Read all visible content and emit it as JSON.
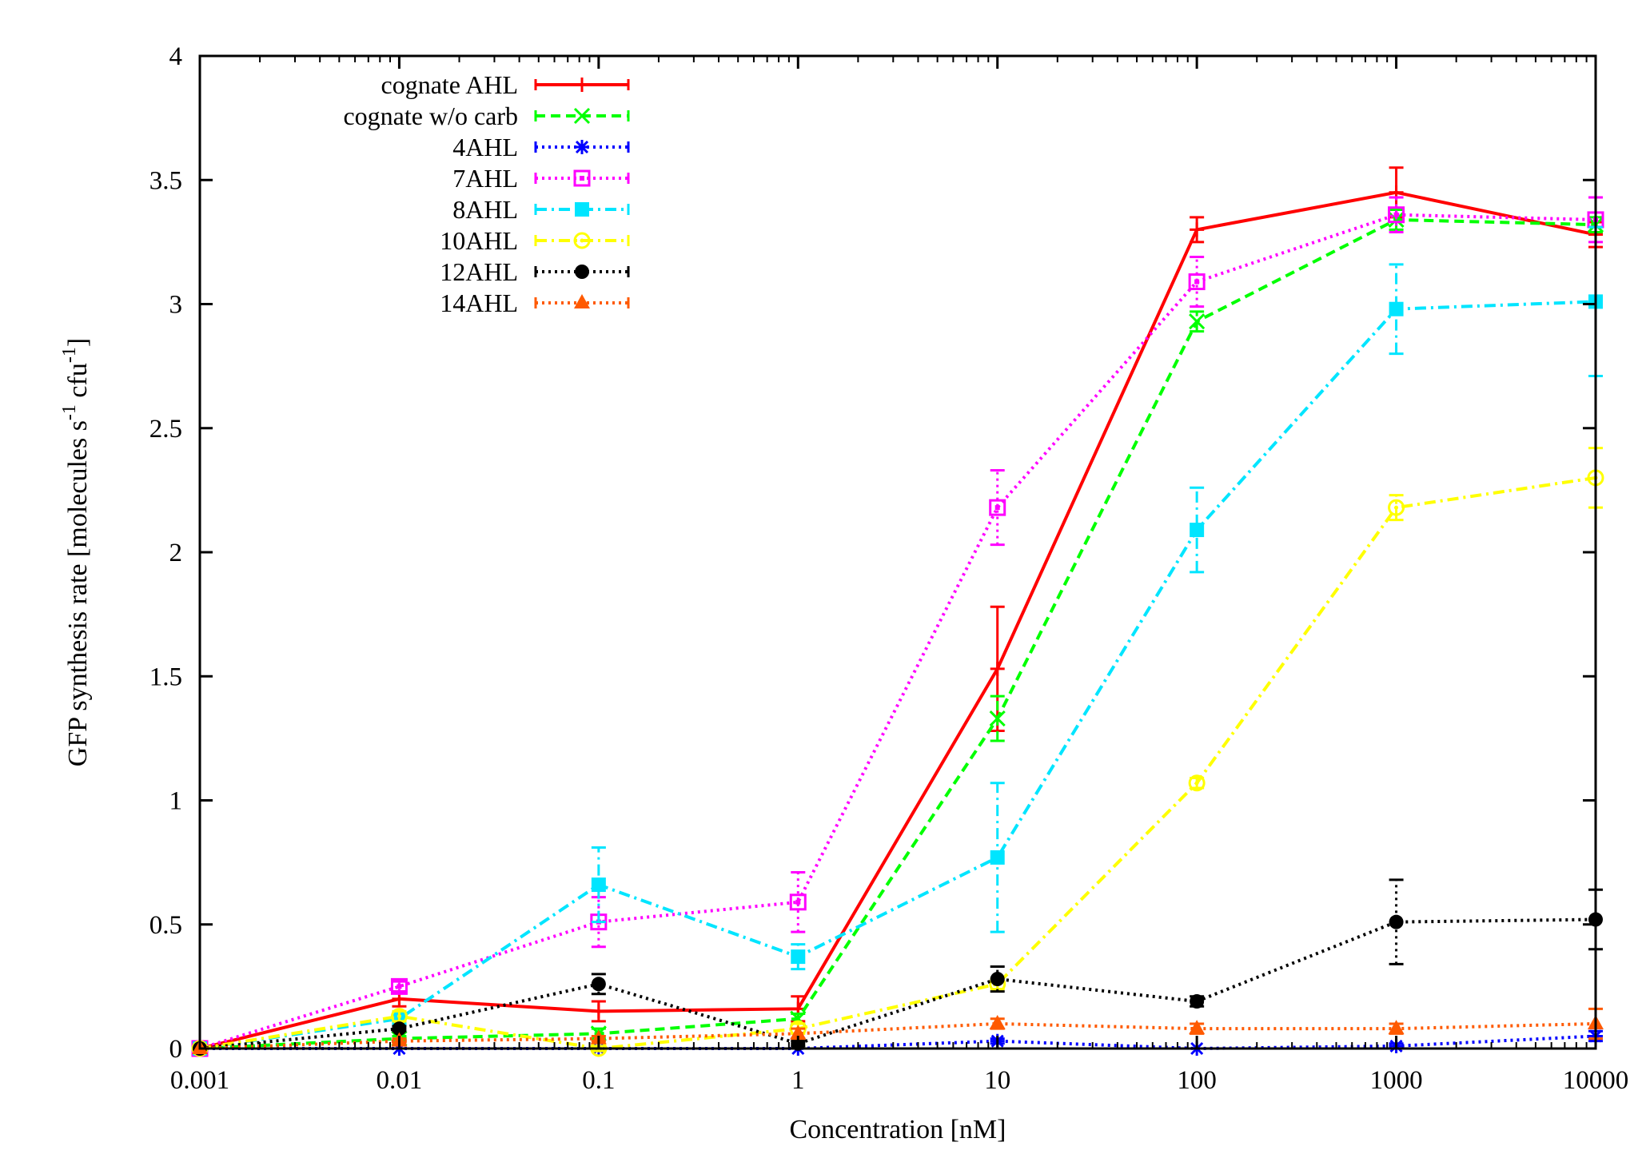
{
  "chart_data": {
    "type": "line",
    "title": "",
    "xlabel": "Concentration [nM]",
    "ylabel_parts": [
      "GFP synthesis rate [molecules s",
      "-1",
      " cfu",
      "-1",
      "]"
    ],
    "x_scale": "log",
    "xlim": [
      0.001,
      10000
    ],
    "ylim": [
      0,
      4
    ],
    "x_tick_labels": [
      "0.001",
      "0.01",
      "0.1",
      "1",
      "10",
      "100",
      "1000",
      "10000"
    ],
    "x_tick_values": [
      0.001,
      0.01,
      0.1,
      1,
      10,
      100,
      1000,
      10000
    ],
    "y_tick_labels": [
      "0",
      "0.5",
      "1",
      "1.5",
      "2",
      "2.5",
      "3",
      "3.5",
      "4"
    ],
    "y_tick_values": [
      0,
      0.5,
      1,
      1.5,
      2,
      2.5,
      3,
      3.5,
      4
    ],
    "grid": false,
    "legend_position": "top-left",
    "x": [
      0.001,
      0.01,
      0.1,
      1,
      10,
      100,
      1000,
      10000
    ],
    "series": [
      {
        "name": "cognate AHL",
        "color": "#ff0000",
        "dash": "solid",
        "marker": "plus",
        "values": [
          0.0,
          0.2,
          0.15,
          0.16,
          1.53,
          3.3,
          3.45,
          3.28
        ],
        "errors": [
          0.0,
          0.03,
          0.04,
          0.05,
          0.25,
          0.05,
          0.1,
          0.05
        ]
      },
      {
        "name": "cognate w/o carb",
        "color": "#00ff00",
        "dash": "dashed",
        "marker": "cross",
        "values": [
          0.0,
          0.04,
          0.06,
          0.12,
          1.33,
          2.93,
          3.34,
          3.32
        ],
        "errors": [
          0.0,
          0.01,
          0.02,
          0.02,
          0.09,
          0.04,
          0.04,
          0.03
        ]
      },
      {
        "name": "4AHL",
        "color": "#0000ff",
        "dash": "dotted",
        "marker": "star",
        "values": [
          0.0,
          0.0,
          0.0,
          0.0,
          0.03,
          0.0,
          0.01,
          0.05
        ],
        "errors": [
          0.0,
          0.0,
          0.0,
          0.0,
          0.01,
          0.0,
          0.01,
          0.02
        ]
      },
      {
        "name": "7AHL",
        "color": "#ff00ff",
        "dash": "dotted",
        "marker": "open-square",
        "values": [
          0.0,
          0.25,
          0.51,
          0.59,
          2.18,
          3.09,
          3.36,
          3.34
        ],
        "errors": [
          0.0,
          0.02,
          0.1,
          0.12,
          0.15,
          0.1,
          0.07,
          0.09
        ]
      },
      {
        "name": "8AHL",
        "color": "#00e5ff",
        "dash": "dashdot",
        "marker": "filled-square",
        "values": [
          0.0,
          0.12,
          0.66,
          0.37,
          0.77,
          2.09,
          2.98,
          3.01
        ],
        "errors": [
          0.0,
          0.02,
          0.15,
          0.05,
          0.3,
          0.17,
          0.18,
          0.3
        ]
      },
      {
        "name": "10AHL",
        "color": "#ffff00",
        "dash": "dashdot",
        "marker": "open-circle",
        "values": [
          0.0,
          0.13,
          0.0,
          0.08,
          0.26,
          1.07,
          2.18,
          2.3
        ],
        "errors": [
          0.0,
          0.02,
          0.01,
          0.02,
          0.02,
          0.02,
          0.05,
          0.12
        ]
      },
      {
        "name": "12AHL",
        "color": "#000000",
        "dash": "dotted",
        "marker": "filled-circle",
        "values": [
          0.0,
          0.08,
          0.26,
          0.02,
          0.28,
          0.19,
          0.51,
          0.52
        ],
        "errors": [
          0.0,
          0.01,
          0.04,
          0.01,
          0.05,
          0.02,
          0.17,
          0.12
        ]
      },
      {
        "name": "14AHL",
        "color": "#ff5a00",
        "dash": "dotted",
        "marker": "filled-triangle",
        "values": [
          0.0,
          0.03,
          0.04,
          0.06,
          0.1,
          0.08,
          0.08,
          0.1
        ],
        "errors": [
          0.0,
          0.01,
          0.01,
          0.02,
          0.02,
          0.02,
          0.02,
          0.06
        ]
      }
    ]
  }
}
